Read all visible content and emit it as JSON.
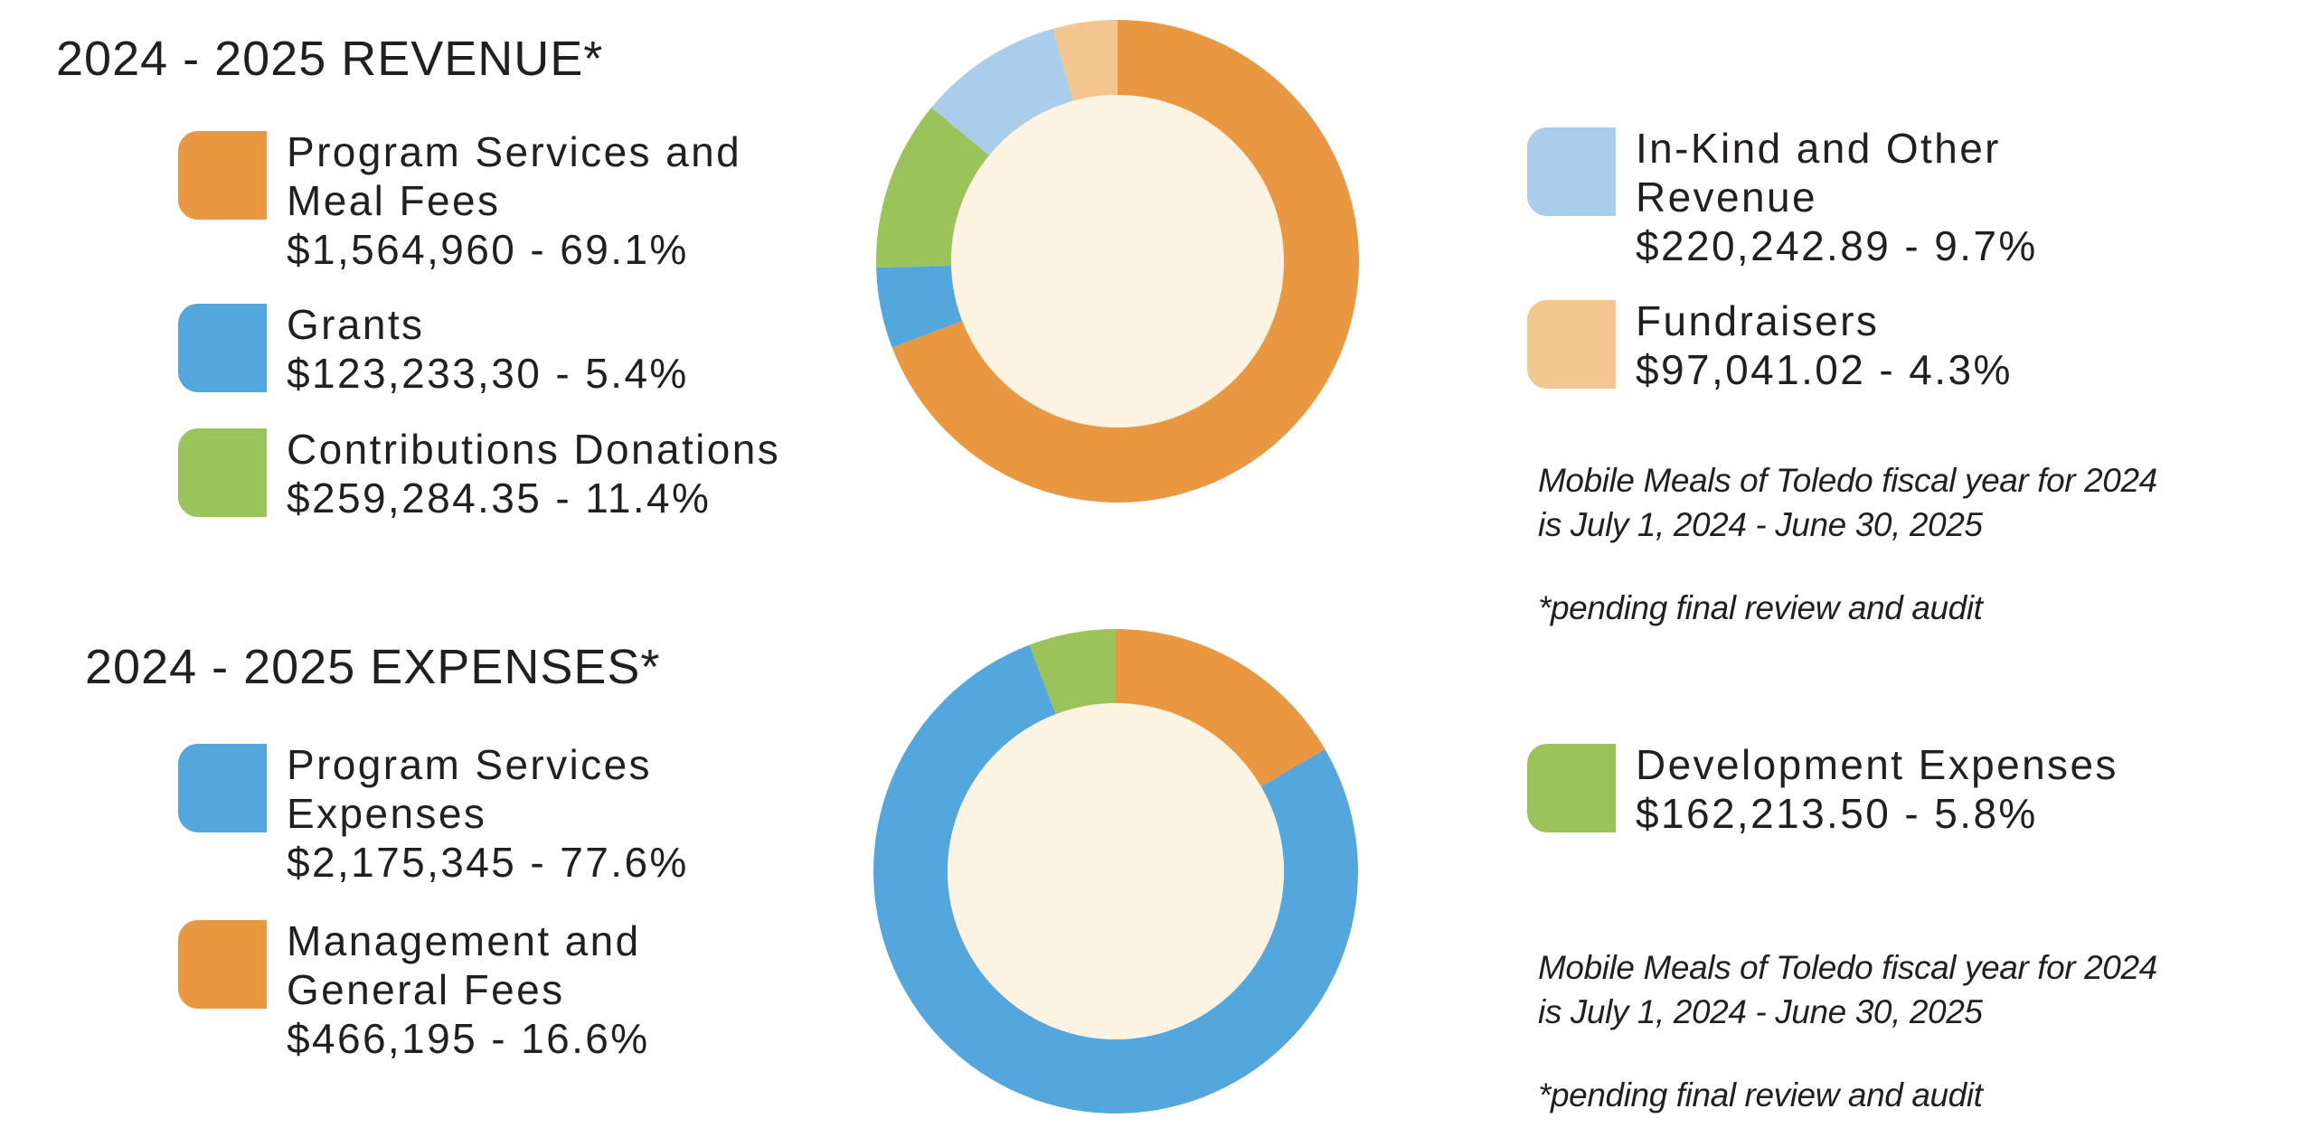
{
  "revenue": {
    "title": "2024 - 2025 REVENUE*",
    "legend_left": [
      {
        "label_lines": [
          "Program Services and",
          "Meal Fees"
        ],
        "value_text": "$1,564,960 - 69.1%",
        "color": "#e99841"
      },
      {
        "label_lines": [
          "Grants"
        ],
        "value_text": "$123,233,30 - 5.4%",
        "color": "#53a7dc"
      },
      {
        "label_lines": [
          "Contributions Donations"
        ],
        "value_text": "$259,284.35 - 11.4%",
        "color": "#9ac45a"
      }
    ],
    "legend_right": [
      {
        "label_lines": [
          "In-Kind and Other",
          "Revenue"
        ],
        "value_text": "$220,242.89 - 9.7%",
        "color": "#abcdec"
      },
      {
        "label_lines": [
          "Fundraisers"
        ],
        "value_text": "$97,041.02 - 4.3%",
        "color": "#f3c690"
      }
    ],
    "note_lines": [
      "Mobile Meals of Toledo fiscal year for 2024",
      "is July 1, 2024 - June 30, 2025"
    ],
    "note_pending": "*pending final review and audit"
  },
  "expenses": {
    "title": "2024 - 2025 EXPENSES*",
    "legend_left": [
      {
        "label_lines": [
          "Program Services",
          "Expenses"
        ],
        "value_text": "$2,175,345 - 77.6%",
        "color": "#53a7dc"
      },
      {
        "label_lines": [
          "Management and",
          "General Fees"
        ],
        "value_text": "$466,195 - 16.6%",
        "color": "#e99841"
      }
    ],
    "legend_right": [
      {
        "label_lines": [
          "Development Expenses"
        ],
        "value_text": "$162,213.50 - 5.8%",
        "color": "#9ac45a"
      }
    ],
    "note_lines": [
      "Mobile Meals of Toledo fiscal year for 2024",
      "is July 1, 2024 - June 30, 2025"
    ],
    "note_pending": "*pending final review and audit"
  },
  "center_color": "#fcf3e3",
  "chart_data": [
    {
      "type": "pie",
      "variant": "donut",
      "title": "2024 - 2025 REVENUE*",
      "start": "top",
      "direction": "clockwise",
      "slices": [
        {
          "label": "Program Services and Meal Fees",
          "amount": 1564960,
          "percent": 69.1,
          "color": "#e99841"
        },
        {
          "label": "Grants",
          "amount": 123233.3,
          "amount_text": "$123,233,30",
          "percent": 5.4,
          "color": "#53a7dc"
        },
        {
          "label": "Contributions Donations",
          "amount": 259284.35,
          "percent": 11.4,
          "color": "#9ac45a"
        },
        {
          "label": "In-Kind and Other Revenue",
          "amount": 220242.89,
          "percent": 9.7,
          "color": "#abcdec"
        },
        {
          "label": "Fundraisers",
          "amount": 97041.02,
          "percent": 4.3,
          "color": "#f3c690"
        }
      ],
      "legend": "left-and-right"
    },
    {
      "type": "pie",
      "variant": "donut",
      "title": "2024 - 2025 EXPENSES*",
      "start": "top",
      "direction": "clockwise",
      "slices": [
        {
          "label": "Management and General Fees",
          "amount": 466195,
          "percent": 16.6,
          "color": "#e99841"
        },
        {
          "label": "Program Services Expenses",
          "amount": 2175345,
          "percent": 77.6,
          "color": "#53a7dc"
        },
        {
          "label": "Development Expenses",
          "amount": 162213.5,
          "percent": 5.8,
          "color": "#9ac45a"
        }
      ],
      "legend": "left-and-right"
    }
  ]
}
